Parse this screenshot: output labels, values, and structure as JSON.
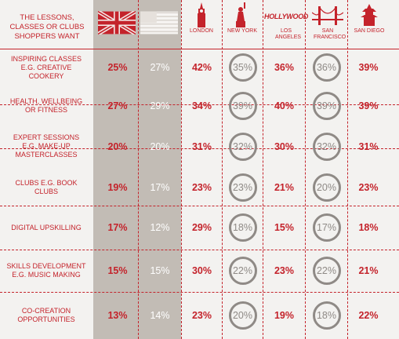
{
  "header": {
    "title_lines": [
      "THE LESSONS,",
      "CLASSES OR CLUBS",
      "SHOPPERS WANT"
    ]
  },
  "columns": [
    {
      "key": "uk",
      "icon": "uk-flag-icon",
      "label": ""
    },
    {
      "key": "us",
      "icon": "us-flag-icon",
      "label": ""
    },
    {
      "key": "london",
      "icon": "big-ben-icon",
      "label": "LONDON"
    },
    {
      "key": "new_york",
      "icon": "statue-of-liberty-icon",
      "label": "NEW YORK"
    },
    {
      "key": "los_angeles",
      "icon": "hollywood-sign-icon",
      "label": "LOS ANGELES",
      "icon_text": "HOLLYWOOD"
    },
    {
      "key": "san_francisco",
      "icon": "golden-gate-bridge-icon",
      "label": "SAN FRANCISCO"
    },
    {
      "key": "san_diego",
      "icon": "pagoda-icon",
      "label": "SAN DIEGO"
    }
  ],
  "rows": [
    {
      "label_lines": [
        "INSPIRING CLASSES",
        "E.G. CREATIVE",
        "COOKERY"
      ],
      "values": [
        "25%",
        "27%",
        "42%",
        "35%",
        "36%",
        "36%",
        "39%"
      ]
    },
    {
      "label_lines": [
        "HEALTH, WELLBEING",
        "OR FITNESS"
      ],
      "values": [
        "27%",
        "29%",
        "34%",
        "39%",
        "40%",
        "39%",
        "39%"
      ]
    },
    {
      "label_lines": [
        "EXPERT SESSIONS",
        "E.G. MAKE-UP",
        "MASTERCLASSES"
      ],
      "values": [
        "20%",
        "20%",
        "31%",
        "32%",
        "30%",
        "32%",
        "31%"
      ]
    },
    {
      "label_lines": [
        "CLUBS E.G. BOOK",
        "CLUBS"
      ],
      "values": [
        "19%",
        "17%",
        "23%",
        "23%",
        "21%",
        "20%",
        "23%"
      ]
    },
    {
      "label_lines": [
        "DIGITAL UPSKILLING"
      ],
      "values": [
        "17%",
        "12%",
        "29%",
        "18%",
        "15%",
        "17%",
        "18%"
      ]
    },
    {
      "label_lines": [
        "SKILLS DEVELOPMENT",
        "E.G. MUSIC MAKING"
      ],
      "values": [
        "15%",
        "15%",
        "30%",
        "22%",
        "23%",
        "22%",
        "21%"
      ]
    },
    {
      "label_lines": [
        "CO-CREATION",
        "OPPORTUNITIES"
      ],
      "values": [
        "13%",
        "14%",
        "23%",
        "20%",
        "19%",
        "18%",
        "22%"
      ]
    }
  ],
  "colors": {
    "accent": "#c4232b",
    "grey_band": "#c2bcb5",
    "circle": "#8f8a86"
  }
}
